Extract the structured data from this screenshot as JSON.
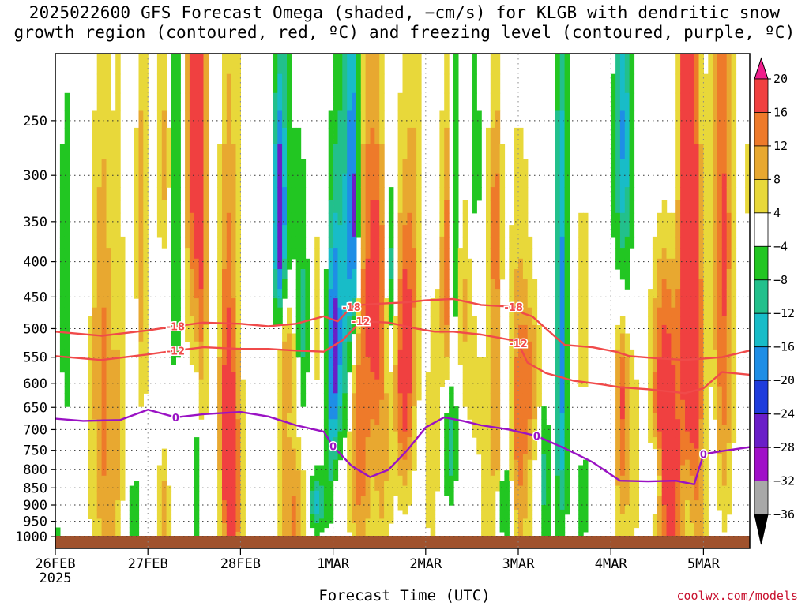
{
  "title": {
    "line1": "2025022600 GFS Forecast Omega (shaded, −cm/s) for KLGB with dendritic snow",
    "line2": "growth region (contoured, red, ºC) and freezing level (contoured, purple, ºC)"
  },
  "source": "coolwx.com/models",
  "colors": {
    "dgz_red": "#f04a4a",
    "freezing_purple": "#9a12c4",
    "ground_brown": "#a0522d"
  },
  "chart_data": {
    "type": "heatmap",
    "xlabel": "Forecast Time (UTC)",
    "ylabel": "",
    "x_axis": {
      "start": "2025-02-26 00Z",
      "end": "2025-03-05 12Z",
      "tick_labels": [
        "26FEB",
        "27FEB",
        "28FEB",
        "1MAR",
        "2MAR",
        "3MAR",
        "4MAR",
        "5MAR"
      ],
      "tick_sublabel": "2025"
    },
    "y_axis": {
      "units": "hPa",
      "reversed": true,
      "tick_labels": [
        "250",
        "300",
        "350",
        "400",
        "450",
        "500",
        "550",
        "600",
        "650",
        "700",
        "750",
        "800",
        "850",
        "900",
        "950",
        "1000"
      ],
      "range": [
        1000,
        200
      ]
    },
    "grid": true,
    "colorbar": {
      "labels": [
        "20",
        "16",
        "12",
        "8",
        "4",
        "−4",
        "−8",
        "−12",
        "−16",
        "−20",
        "−24",
        "−28",
        "−32",
        "−36"
      ],
      "colors": [
        "#f01e8c",
        "#f04040",
        "#ee7a2a",
        "#e8a830",
        "#e8d83a",
        "#ffffff",
        "#22c622",
        "#22c08c",
        "#18bcc8",
        "#1e8ee6",
        "#1e3cdc",
        "#6a1ec8",
        "#a010c8",
        "#a8a8a8",
        "#000000"
      ]
    },
    "contours": [
      {
        "label": "-18",
        "kind": "dgz",
        "x_days": [
          0,
          0.5,
          1.0,
          1.3,
          1.6,
          2.0,
          2.3,
          2.6,
          2.9,
          3.05,
          3.2,
          3.3,
          3.5,
          3.8,
          4.0,
          4.3,
          4.6,
          4.95,
          5.05,
          5.15,
          5.3,
          5.5,
          5.8,
          6.05,
          6.2,
          6.5,
          6.8,
          7.2,
          7.5
        ],
        "y_hpa": [
          505,
          512,
          503,
          496,
          490,
          492,
          496,
          492,
          480,
          488,
          465,
          462,
          460,
          458,
          455,
          453,
          462,
          465,
          475,
          480,
          500,
          528,
          532,
          540,
          548,
          552,
          555,
          550,
          538
        ]
      },
      {
        "label": "-12",
        "kind": "dgz",
        "x_days": [
          0,
          0.5,
          1.0,
          1.3,
          1.6,
          2.0,
          2.3,
          2.6,
          2.9,
          3.1,
          3.3,
          3.6,
          3.9,
          4.1,
          4.3,
          4.6,
          4.95,
          5.0,
          5.1,
          5.3,
          5.6,
          5.9,
          6.1,
          6.4,
          6.8,
          7.0,
          7.2,
          7.5
        ],
        "y_hpa": [
          548,
          555,
          545,
          538,
          532,
          535,
          535,
          538,
          540,
          520,
          488,
          490,
          500,
          505,
          505,
          510,
          520,
          525,
          560,
          580,
          595,
          602,
          608,
          612,
          620,
          610,
          578,
          583
        ]
      },
      {
        "label": "0",
        "kind": "freezing",
        "x_days": [
          0,
          0.3,
          0.7,
          1.0,
          1.3,
          1.6,
          2.0,
          2.3,
          2.6,
          2.9,
          3.0,
          3.2,
          3.4,
          3.6,
          3.8,
          4.0,
          4.2,
          4.4,
          4.6,
          4.9,
          5.2,
          5.5,
          5.8,
          6.1,
          6.4,
          6.7,
          6.9,
          7.0,
          7.2,
          7.5
        ],
        "y_hpa": [
          675,
          680,
          678,
          655,
          672,
          665,
          660,
          670,
          690,
          705,
          740,
          790,
          820,
          800,
          750,
          695,
          672,
          680,
          690,
          700,
          715,
          745,
          780,
          830,
          832,
          830,
          840,
          760,
          752,
          742
        ]
      }
    ]
  }
}
